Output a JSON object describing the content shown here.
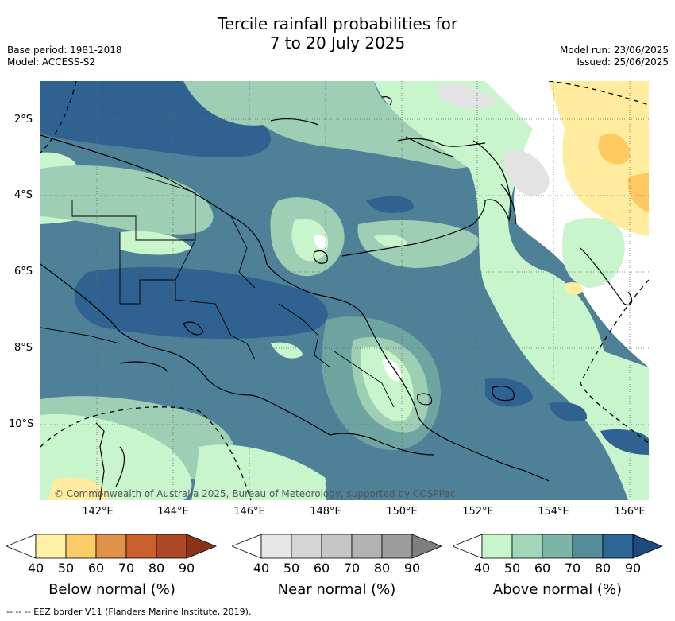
{
  "header": {
    "title_line1": "Tercile rainfall probabilities for",
    "title_line2": "7 to 20 July 2025",
    "base_period": "Base period: 1981-2018",
    "model": "Model: ACCESS-S2",
    "model_run": "Model run: 23/06/2025",
    "issued": "Issued: 25/06/2025"
  },
  "map": {
    "lat_labels": [
      "2°S",
      "4°S",
      "6°S",
      "8°S",
      "10°S"
    ],
    "lon_labels": [
      "142°E",
      "144°E",
      "146°E",
      "148°E",
      "150°E",
      "152°E",
      "154°E",
      "156°E"
    ],
    "copyright": "© Commonwealth of Australia 2025, Bureau of Meteorology, supported by COSPPac",
    "colors": {
      "above_50": "#c8f5cc",
      "above_60": "#9ecfb4",
      "above_70": "#6ea5a0",
      "above_80": "#4e8098",
      "above_90": "#2f6290",
      "below_50": "#ffec9e",
      "below_60": "#fdc960",
      "near_50": "#e3e3e3"
    }
  },
  "colorbars": {
    "below": {
      "title": "Below normal (%)",
      "ticks": [
        "40",
        "50",
        "60",
        "70",
        "80",
        "90"
      ],
      "colors": [
        "#ffffff",
        "#fff2a8",
        "#fccc66",
        "#e0924a",
        "#c9602e",
        "#ac4a28",
        "#8c3218"
      ]
    },
    "near": {
      "title": "Near normal (%)",
      "ticks": [
        "40",
        "50",
        "60",
        "70",
        "80",
        "90"
      ],
      "colors": [
        "#ffffff",
        "#e6e6e6",
        "#d6d6d6",
        "#c6c6c6",
        "#b2b2b2",
        "#9c9c9c",
        "#7e7e7e"
      ]
    },
    "above": {
      "title": "Above normal (%)",
      "ticks": [
        "40",
        "50",
        "60",
        "70",
        "80",
        "90"
      ],
      "colors": [
        "#ffffff",
        "#c8f6cc",
        "#a2d6b8",
        "#7eb4a8",
        "#568c9a",
        "#2e6698",
        "#1c4a7c"
      ]
    }
  },
  "footer": "--  --  -- EEZ border V11 (Flanders Marine Institute, 2019)."
}
